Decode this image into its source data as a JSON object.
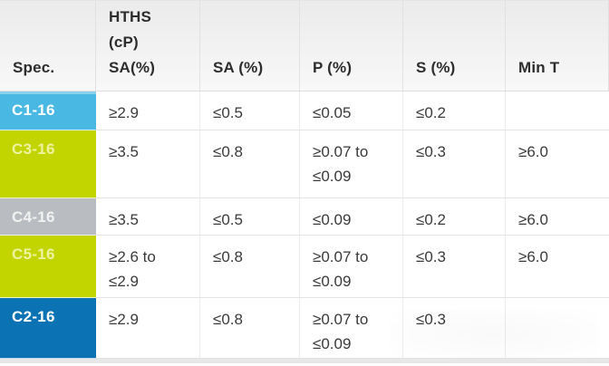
{
  "theme": {
    "header_text": "#2d2d2d",
    "body_text": "#3a3a3a",
    "grid_line": "#e3e3e3",
    "row_colors": {
      "c1_cyan": "#49b8e2",
      "c3_lime": "#c2d500",
      "c4_gray": "#b9bcc1",
      "c5_lime": "#c2d500",
      "c2_blue": "#0b72b4"
    }
  },
  "table": {
    "headers": {
      "spec": "Spec.",
      "hths_lines": [
        "HTHS",
        "(cP)",
        "SA(%)"
      ],
      "sa": "SA (%)",
      "p": "P (%)",
      "s": "S (%)",
      "min_t": "Min T"
    },
    "rows": [
      {
        "spec": "C1-16",
        "colors": {
          "bg": "#49b8e2",
          "text": "#ffffff"
        },
        "hths": "≥2.9",
        "sa": "≤0.5",
        "p": "≤0.05",
        "s": "≤0.2",
        "min_t": ""
      },
      {
        "spec": "C3-16",
        "colors": {
          "bg": "#c2d500",
          "text": "#eef3a0"
        },
        "hths": "≥3.5",
        "sa": "≤0.8",
        "p": "≥0.07 to\n≤0.09",
        "s": "≤0.3",
        "min_t": "≥6.0"
      },
      {
        "spec": "C4-16",
        "colors": {
          "bg": "#b9bcc1",
          "text": "#f2f2f2"
        },
        "hths": "≥3.5",
        "sa": "≤0.5",
        "p": "≤0.09",
        "s": "≤0.2",
        "min_t": "≥6.0"
      },
      {
        "spec": "C5-16",
        "colors": {
          "bg": "#c2d500",
          "text": "#eef3a0"
        },
        "hths": "≥2.6 to\n≤2.9",
        "sa": "≤0.8",
        "p": "≥0.07 to\n≤0.09",
        "s": "≤0.3",
        "min_t": "≥6.0"
      },
      {
        "spec": "C2-16",
        "colors": {
          "bg": "#0b72b4",
          "text": "#ffffff"
        },
        "hths": "≥2.9",
        "sa": "≤0.8",
        "p": "≥0.07 to\n≤0.09",
        "s": "≤0.3",
        "min_t": ""
      }
    ]
  }
}
